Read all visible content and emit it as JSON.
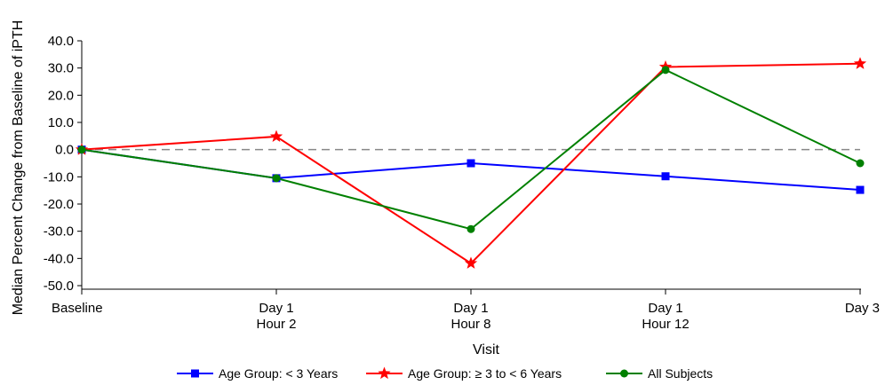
{
  "chart_data": {
    "type": "line",
    "xlabel": "Visit",
    "ylabel": "Median Percent Change from Baseline of iPTH",
    "ylim": [
      -50,
      40
    ],
    "yticks": [
      40.0,
      30.0,
      20.0,
      10.0,
      0.0,
      -10.0,
      -20.0,
      -30.0,
      -40.0,
      -50.0
    ],
    "ytick_labels": [
      "40.0",
      "30.0",
      "20.0",
      "10.0",
      "0.0",
      "-10.0",
      "-20.0",
      "-30.0",
      "-40.0",
      "-50.0"
    ],
    "categories": [
      {
        "line1": "Baseline",
        "line2": ""
      },
      {
        "line1": "Day 1",
        "line2": "Hour 2"
      },
      {
        "line1": "Day 1",
        "line2": "Hour 8"
      },
      {
        "line1": "Day 1",
        "line2": "Hour 12"
      },
      {
        "line1": "Day 3",
        "line2": ""
      }
    ],
    "reference_line": 0,
    "grid": false,
    "legend_position": "bottom",
    "series": [
      {
        "name": "Age Group: < 3 Years",
        "color": "#0000ff",
        "marker": "square",
        "values": [
          0.0,
          -10.5,
          -5.0,
          -9.8,
          -14.8
        ]
      },
      {
        "name": "Age Group: ≥ 3 to < 6 Years",
        "color": "#ff0000",
        "marker": "star",
        "values": [
          0.0,
          4.8,
          -41.8,
          30.4,
          31.6
        ]
      },
      {
        "name": "All Subjects",
        "color": "#008000",
        "marker": "circle",
        "values": [
          0.0,
          -10.5,
          -29.2,
          29.3,
          -5.0
        ]
      }
    ]
  }
}
